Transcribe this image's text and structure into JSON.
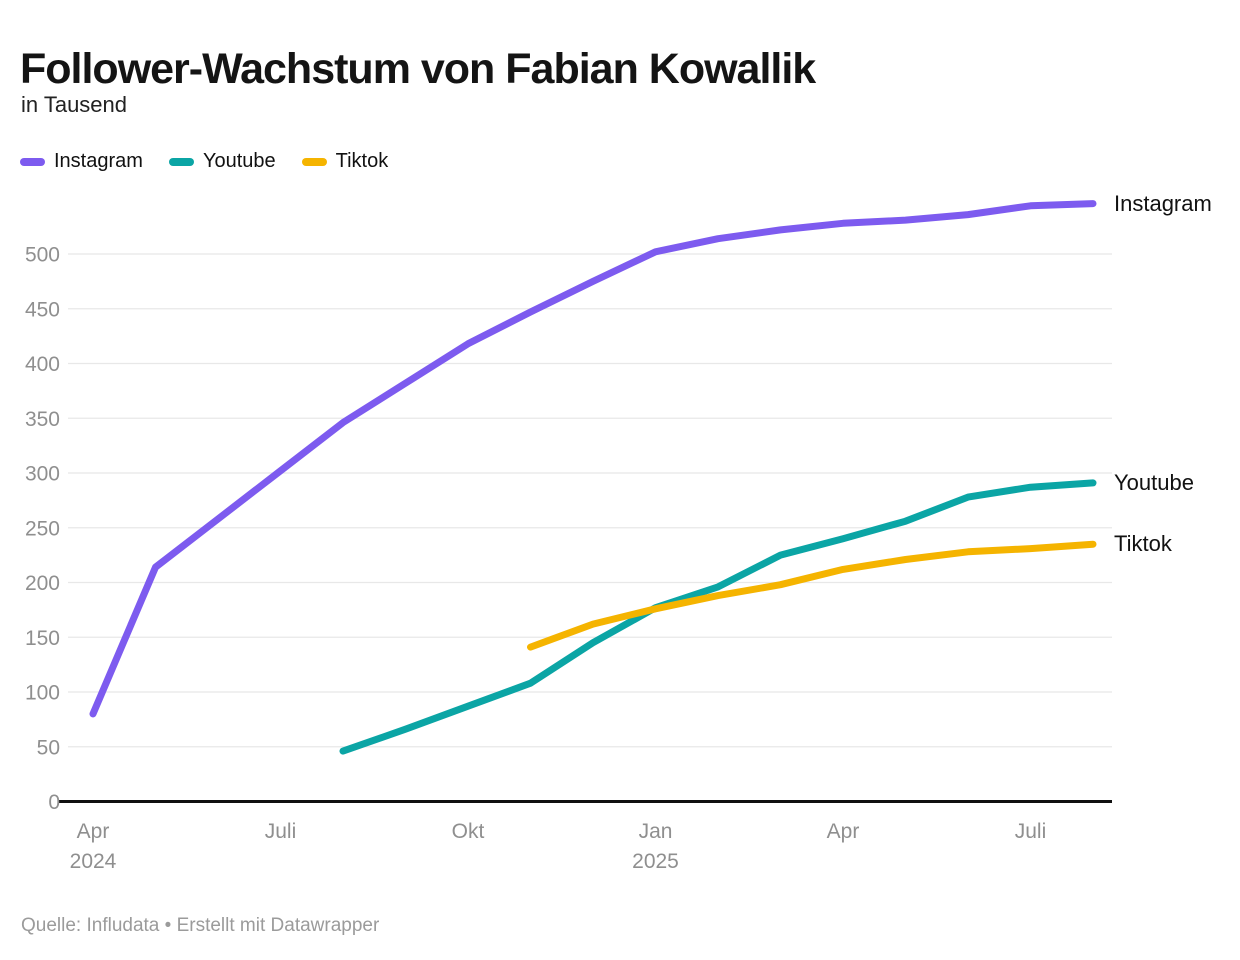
{
  "chart_data": {
    "type": "line",
    "title": "Follower-Wachstum von Fabian Kowallik",
    "subtitle": "in Tausend",
    "unit": "Tausend Follower",
    "grid": true,
    "legend_position": "top-left",
    "months": [
      "Apr 2024",
      "Mai 2024",
      "Jun 2024",
      "Jul 2024",
      "Aug 2024",
      "Sep 2024",
      "Okt 2024",
      "Nov 2024",
      "Dez 2024",
      "Jan 2025",
      "Feb 2025",
      "Mär 2025",
      "Apr 2025",
      "Mai 2025",
      "Jun 2025",
      "Jul 2025",
      "Aug 2025"
    ],
    "x_axis": {
      "ticks": [
        {
          "label": "Apr",
          "year": "2024",
          "month_index": 0
        },
        {
          "label": "Juli",
          "year": "",
          "month_index": 3
        },
        {
          "label": "Okt",
          "year": "",
          "month_index": 6
        },
        {
          "label": "Jan",
          "year": "2025",
          "month_index": 9
        },
        {
          "label": "Apr",
          "year": "",
          "month_index": 12
        },
        {
          "label": "Juli",
          "year": "",
          "month_index": 15
        }
      ]
    },
    "y_axis": {
      "min": 0,
      "max": 500,
      "tick_step": 50,
      "ticks": [
        0,
        50,
        100,
        150,
        200,
        250,
        300,
        350,
        400,
        450,
        500
      ],
      "ylim": [
        0,
        550
      ]
    },
    "series": [
      {
        "name": "Instagram",
        "color": "#7d5bef",
        "start_month": "Apr 2024",
        "start_index": 0,
        "values": [
          80,
          214,
          258,
          302,
          346,
          382,
          418,
          447,
          475,
          502,
          514,
          522,
          528,
          531,
          536,
          544,
          546
        ]
      },
      {
        "name": "Youtube",
        "color": "#0ba5a5",
        "start_month": "Aug 2024",
        "start_index": 4,
        "values": [
          46,
          66,
          87,
          108,
          145,
          177,
          196,
          225,
          240,
          256,
          278,
          287,
          291
        ]
      },
      {
        "name": "Tiktok",
        "color": "#f5b400",
        "start_month": "Nov 2024",
        "start_index": 7,
        "values": [
          141,
          162,
          176,
          188,
          198,
          212,
          221,
          228,
          231,
          235
        ]
      }
    ],
    "colors": {
      "grid": "#e8e8e8",
      "axis_baseline": "#101010",
      "tick_text": "#8f8f8f",
      "text": "#141414"
    }
  },
  "footer": {
    "attribution": "Quelle: Infludata • Erstellt mit Datawrapper"
  }
}
